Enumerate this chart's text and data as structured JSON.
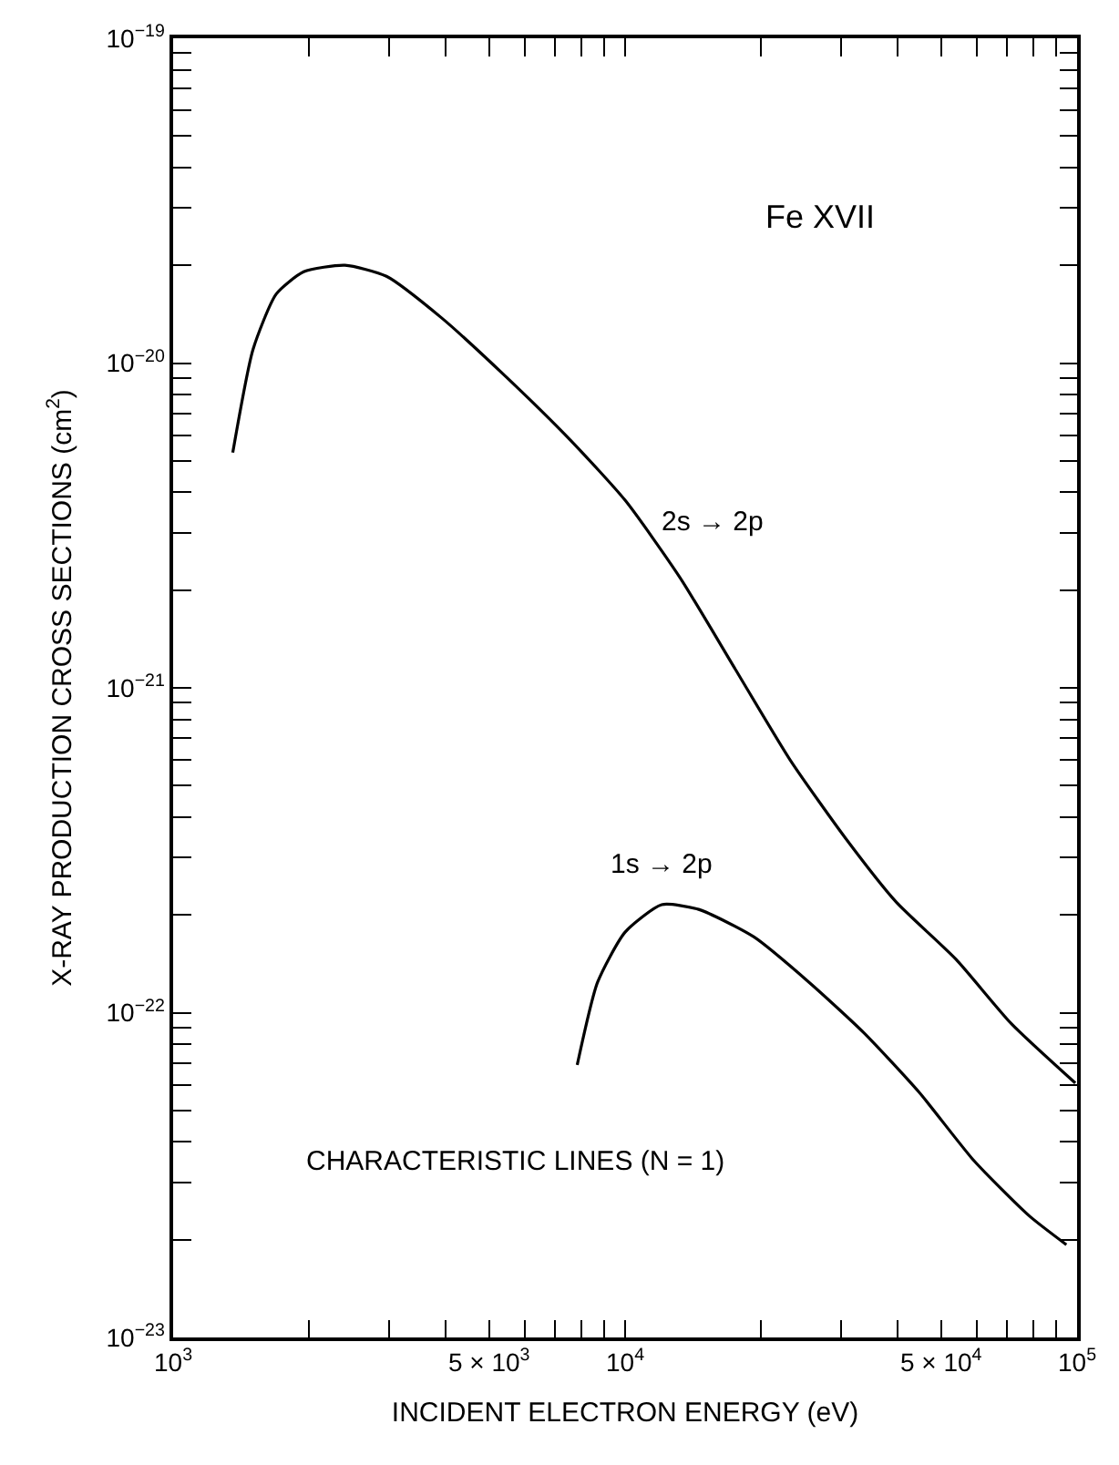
{
  "chart_data": {
    "type": "line",
    "xlabel": "INCIDENT ELECTRON ENERGY (eV)",
    "ylabel": "X-RAY PRODUCTION CROSS SECTIONS (cm$^{2}$)",
    "log": "xy",
    "legend": false,
    "marker": "none",
    "line_style": "solid",
    "xlim": [
      1000,
      100000
    ],
    "ylim": [
      1e-23,
      1e-19
    ],
    "xticks": [
      {
        "value": 1000,
        "label": "10$^{3}$"
      },
      {
        "value": 2000,
        "label": null
      },
      {
        "value": 3000,
        "label": null
      },
      {
        "value": 4000,
        "label": null
      },
      {
        "value": 5000,
        "label": "5 × 10$^{3}$"
      },
      {
        "value": 6000,
        "label": null
      },
      {
        "value": 7000,
        "label": null
      },
      {
        "value": 8000,
        "label": null
      },
      {
        "value": 9000,
        "label": null
      },
      {
        "value": 10000,
        "label": "10$^{4}$"
      },
      {
        "value": 20000,
        "label": null
      },
      {
        "value": 30000,
        "label": null
      },
      {
        "value": 40000,
        "label": null
      },
      {
        "value": 50000,
        "label": "5 × 10$^{4}$"
      },
      {
        "value": 60000,
        "label": null
      },
      {
        "value": 70000,
        "label": null
      },
      {
        "value": 80000,
        "label": null
      },
      {
        "value": 90000,
        "label": null
      },
      {
        "value": 100000,
        "label": "10$^{5}$"
      }
    ],
    "yticks": [
      {
        "value": 1e-23,
        "label": "10$^{−23}$"
      },
      {
        "value": 2e-23,
        "label": null
      },
      {
        "value": 3e-23,
        "label": null
      },
      {
        "value": 4e-23,
        "label": null
      },
      {
        "value": 5e-23,
        "label": null
      },
      {
        "value": 6e-23,
        "label": null
      },
      {
        "value": 7e-23,
        "label": null
      },
      {
        "value": 8e-23,
        "label": null
      },
      {
        "value": 9e-23,
        "label": null
      },
      {
        "value": 1e-22,
        "label": "10$^{−22}$"
      },
      {
        "value": 2e-22,
        "label": null
      },
      {
        "value": 3e-22,
        "label": null
      },
      {
        "value": 4e-22,
        "label": null
      },
      {
        "value": 5e-22,
        "label": null
      },
      {
        "value": 6e-22,
        "label": null
      },
      {
        "value": 7e-22,
        "label": null
      },
      {
        "value": 8e-22,
        "label": null
      },
      {
        "value": 9e-22,
        "label": null
      },
      {
        "value": 1e-21,
        "label": "10$^{−21}$"
      },
      {
        "value": 2e-21,
        "label": null
      },
      {
        "value": 3e-21,
        "label": null
      },
      {
        "value": 4e-21,
        "label": null
      },
      {
        "value": 5e-21,
        "label": null
      },
      {
        "value": 6e-21,
        "label": null
      },
      {
        "value": 7e-21,
        "label": null
      },
      {
        "value": 8e-21,
        "label": null
      },
      {
        "value": 9e-21,
        "label": null
      },
      {
        "value": 1e-20,
        "label": "10$^{−20}$"
      },
      {
        "value": 2e-20,
        "label": null
      },
      {
        "value": 3e-20,
        "label": null
      },
      {
        "value": 4e-20,
        "label": null
      },
      {
        "value": 5e-20,
        "label": null
      },
      {
        "value": 6e-20,
        "label": null
      },
      {
        "value": 7e-20,
        "label": null
      },
      {
        "value": 8e-20,
        "label": null
      },
      {
        "value": 9e-20,
        "label": null
      },
      {
        "value": 1e-19,
        "label": "10$^{−19}$"
      }
    ],
    "series": [
      {
        "name": "2s → 2p",
        "color": "#000000",
        "x": [
          1355,
          1502,
          1690,
          1945,
          2400,
          2965,
          3920,
          5440,
          7560,
          10000,
          13240,
          17540,
          23230,
          30760,
          39800,
          53950,
          71470,
          99100
        ],
        "values": [
          5.3e-21,
          1.1e-20,
          1.63e-20,
          1.91e-20,
          2e-20,
          1.85e-20,
          1.38e-20,
          9.1e-21,
          5.8e-21,
          3.78e-21,
          2.18e-21,
          1.14e-21,
          5.97e-22,
          3.44e-22,
          2.19e-22,
          1.46e-22,
          9.26e-23,
          6.07e-23
        ]
      },
      {
        "name": "1s → 2p",
        "color": "#000000",
        "x": [
          7835,
          8690,
          10000,
          12050,
          14540,
          19280,
          25530,
          33750,
          44700,
          59150,
          78300,
          94700
        ],
        "values": [
          6.9e-23,
          1.24e-22,
          1.77e-22,
          2.15e-22,
          2.08e-22,
          1.71e-22,
          1.24e-22,
          8.67e-23,
          5.69e-23,
          3.5e-23,
          2.37e-23,
          1.93e-23
        ]
      }
    ],
    "annotations": [
      "Fe XVII",
      "CHARACTERISTIC LINES (N = 1)"
    ]
  }
}
